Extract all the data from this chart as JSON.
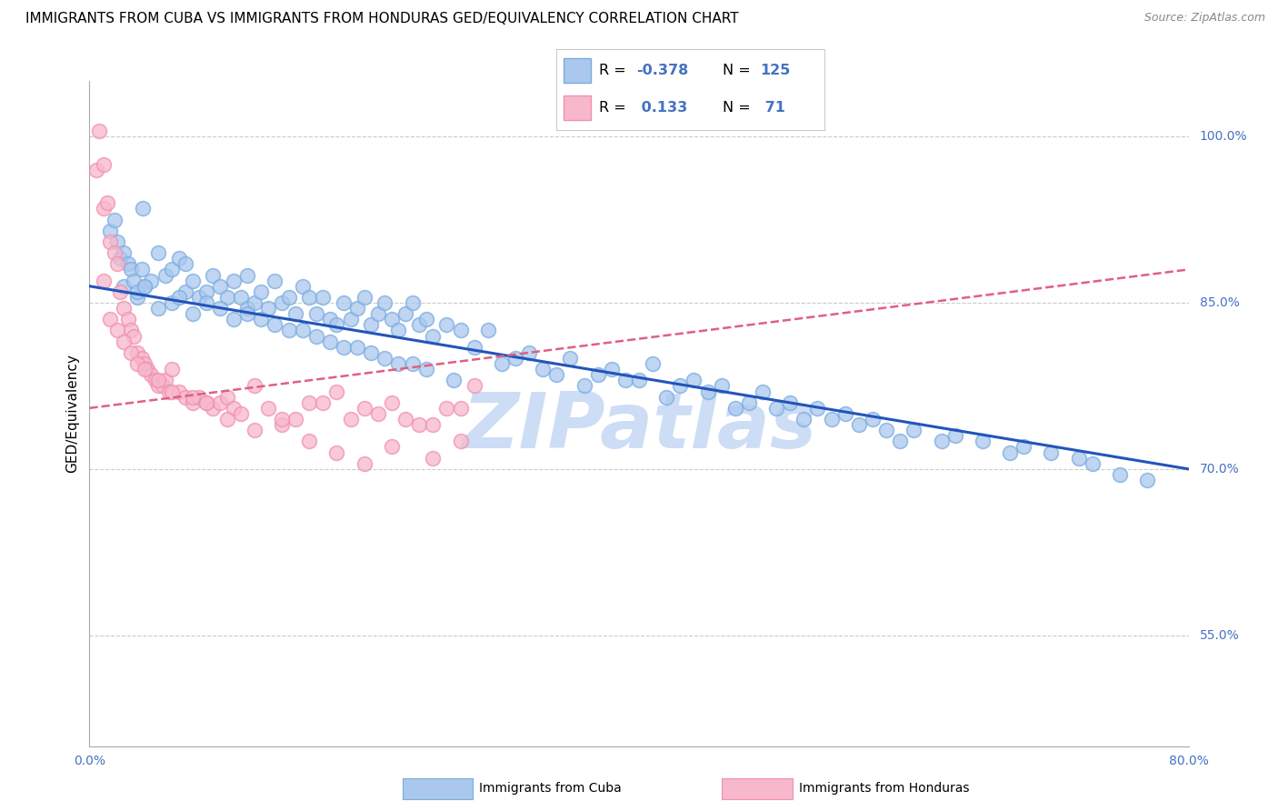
{
  "title": "IMMIGRANTS FROM CUBA VS IMMIGRANTS FROM HONDURAS GED/EQUIVALENCY CORRELATION CHART",
  "source": "Source: ZipAtlas.com",
  "ylabel": "GED/Equivalency",
  "xlim": [
    0.0,
    80.0
  ],
  "ylim": [
    45.0,
    105.0
  ],
  "yticks": [
    55.0,
    70.0,
    85.0,
    100.0
  ],
  "ytick_labels": [
    "55.0%",
    "70.0%",
    "85.0%",
    "100.0%"
  ],
  "legend_cuba_r": "-0.378",
  "legend_cuba_n": "125",
  "legend_honduras_r": "0.133",
  "legend_honduras_n": "71",
  "cuba_color": "#aac8ee",
  "cuba_edge_color": "#7aacdf",
  "honduras_color": "#f7b8cb",
  "honduras_edge_color": "#f090b0",
  "cuba_line_color": "#2255bb",
  "honduras_line_color": "#e06080",
  "watermark_text": "ZIPatlas",
  "watermark_color": "#ccddf5",
  "axis_label_color": "#4472c4",
  "background_color": "#ffffff",
  "grid_color": "#cccccc",
  "cuba_trend_x0": 0.0,
  "cuba_trend_y0": 86.5,
  "cuba_trend_x1": 80.0,
  "cuba_trend_y1": 70.0,
  "honduras_trend_x0": 0.0,
  "honduras_trend_y0": 75.5,
  "honduras_trend_x1": 80.0,
  "honduras_trend_y1": 88.0,
  "cuba_scatter_x": [
    1.5,
    1.8,
    2.0,
    2.2,
    2.5,
    2.5,
    2.8,
    3.0,
    3.2,
    3.5,
    3.8,
    3.9,
    4.0,
    4.5,
    5.0,
    5.5,
    6.0,
    6.0,
    6.5,
    7.0,
    7.0,
    7.5,
    8.0,
    8.5,
    9.0,
    9.5,
    10.0,
    10.5,
    11.0,
    11.5,
    11.5,
    12.0,
    12.5,
    13.0,
    13.5,
    14.0,
    14.5,
    15.0,
    15.5,
    16.0,
    16.5,
    17.0,
    17.5,
    18.0,
    18.5,
    19.0,
    19.5,
    20.0,
    20.5,
    21.0,
    21.5,
    22.0,
    22.5,
    23.0,
    23.5,
    24.0,
    24.5,
    25.0,
    26.0,
    27.0,
    28.0,
    29.0,
    30.0,
    31.0,
    32.0,
    33.0,
    34.0,
    35.0,
    36.0,
    37.0,
    38.0,
    39.0,
    40.0,
    41.0,
    42.0,
    43.0,
    44.0,
    45.0,
    46.0,
    47.0,
    48.0,
    49.0,
    50.0,
    51.0,
    52.0,
    53.0,
    54.0,
    55.0,
    56.0,
    57.0,
    58.0,
    59.0,
    60.0,
    62.0,
    63.0,
    65.0,
    67.0,
    68.0,
    70.0,
    72.0,
    73.0,
    75.0,
    77.0,
    3.5,
    4.0,
    5.0,
    6.5,
    7.5,
    8.5,
    9.5,
    10.5,
    11.5,
    12.5,
    13.5,
    14.5,
    15.5,
    16.5,
    17.5,
    18.5,
    19.5,
    20.5,
    21.5,
    22.5,
    23.5,
    24.5,
    26.5
  ],
  "cuba_scatter_y": [
    91.5,
    92.5,
    90.5,
    89.0,
    89.5,
    86.5,
    88.5,
    88.0,
    87.0,
    85.5,
    88.0,
    93.5,
    86.5,
    87.0,
    89.5,
    87.5,
    85.0,
    88.0,
    89.0,
    88.5,
    86.0,
    87.0,
    85.5,
    86.0,
    87.5,
    86.5,
    85.5,
    87.0,
    85.5,
    87.5,
    84.5,
    85.0,
    86.0,
    84.5,
    87.0,
    85.0,
    85.5,
    84.0,
    86.5,
    85.5,
    84.0,
    85.5,
    83.5,
    83.0,
    85.0,
    83.5,
    84.5,
    85.5,
    83.0,
    84.0,
    85.0,
    83.5,
    82.5,
    84.0,
    85.0,
    83.0,
    83.5,
    82.0,
    83.0,
    82.5,
    81.0,
    82.5,
    79.5,
    80.0,
    80.5,
    79.0,
    78.5,
    80.0,
    77.5,
    78.5,
    79.0,
    78.0,
    78.0,
    79.5,
    76.5,
    77.5,
    78.0,
    77.0,
    77.5,
    75.5,
    76.0,
    77.0,
    75.5,
    76.0,
    74.5,
    75.5,
    74.5,
    75.0,
    74.0,
    74.5,
    73.5,
    72.5,
    73.5,
    72.5,
    73.0,
    72.5,
    71.5,
    72.0,
    71.5,
    71.0,
    70.5,
    69.5,
    69.0,
    86.0,
    86.5,
    84.5,
    85.5,
    84.0,
    85.0,
    84.5,
    83.5,
    84.0,
    83.5,
    83.0,
    82.5,
    82.5,
    82.0,
    81.5,
    81.0,
    81.0,
    80.5,
    80.0,
    79.5,
    79.5,
    79.0,
    78.0
  ],
  "honduras_scatter_x": [
    0.5,
    0.7,
    1.0,
    1.0,
    1.3,
    1.5,
    1.8,
    2.0,
    2.2,
    2.5,
    2.8,
    3.0,
    3.2,
    3.5,
    3.8,
    4.0,
    4.2,
    4.5,
    4.8,
    5.0,
    5.3,
    5.5,
    5.8,
    6.0,
    6.5,
    7.0,
    7.5,
    8.0,
    8.5,
    9.0,
    9.5,
    10.0,
    10.5,
    11.0,
    12.0,
    13.0,
    14.0,
    15.0,
    16.0,
    17.0,
    18.0,
    19.0,
    20.0,
    21.0,
    22.0,
    23.0,
    24.0,
    25.0,
    26.0,
    27.0,
    1.0,
    1.5,
    2.0,
    2.5,
    3.0,
    3.5,
    4.0,
    5.0,
    6.0,
    7.5,
    8.5,
    10.0,
    12.0,
    14.0,
    16.0,
    18.0,
    20.0,
    22.0,
    25.0,
    27.0,
    28.0
  ],
  "honduras_scatter_y": [
    97.0,
    100.5,
    97.5,
    93.5,
    94.0,
    90.5,
    89.5,
    88.5,
    86.0,
    84.5,
    83.5,
    82.5,
    82.0,
    80.5,
    80.0,
    79.5,
    79.0,
    78.5,
    78.0,
    77.5,
    77.5,
    78.0,
    77.0,
    79.0,
    77.0,
    76.5,
    76.0,
    76.5,
    76.0,
    75.5,
    76.0,
    76.5,
    75.5,
    75.0,
    77.5,
    75.5,
    74.0,
    74.5,
    76.0,
    76.0,
    77.0,
    74.5,
    75.5,
    75.0,
    76.0,
    74.5,
    74.0,
    74.0,
    75.5,
    75.5,
    87.0,
    83.5,
    82.5,
    81.5,
    80.5,
    79.5,
    79.0,
    78.0,
    77.0,
    76.5,
    76.0,
    74.5,
    73.5,
    74.5,
    72.5,
    71.5,
    70.5,
    72.0,
    71.0,
    72.5,
    77.5
  ]
}
